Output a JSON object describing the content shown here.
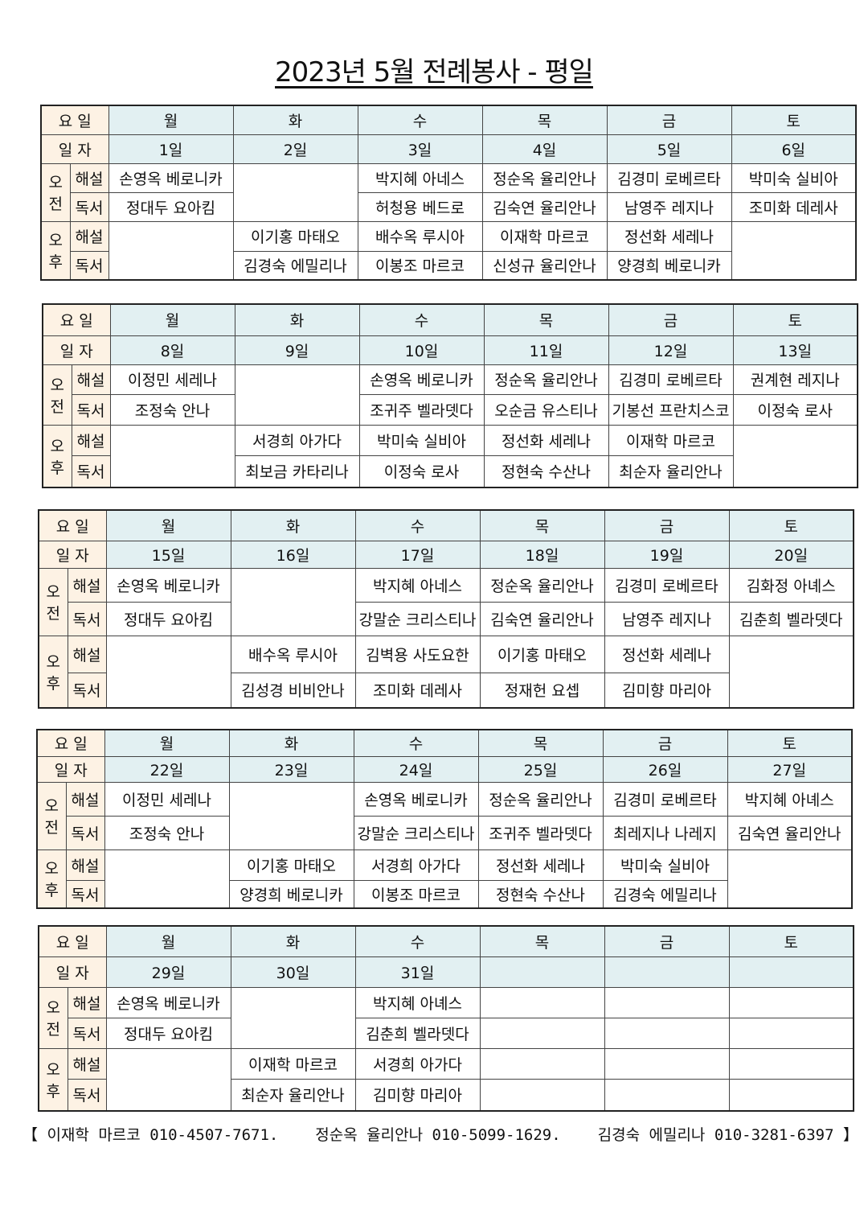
{
  "title": "2023년 5월 전례봉사 - 평일",
  "labels": {
    "weekday": "요 일",
    "date": "일 자",
    "am_1": "오",
    "am_2": "전",
    "pm_1": "오",
    "pm_2": "후",
    "commentary": "해설",
    "reading": "독서"
  },
  "colors": {
    "label_bg": "#fdf2e4",
    "header_bg": "#e2f0f2"
  },
  "weeks": [
    {
      "days": [
        "월",
        "화",
        "수",
        "목",
        "금",
        "토"
      ],
      "dates": [
        "1일",
        "2일",
        "3일",
        "4일",
        "5일",
        "6일"
      ],
      "am_commentary": [
        "손영옥 베로니카",
        "",
        "박지혜 아네스",
        "정순옥 율리안나",
        "김경미 로베르타",
        "박미숙 실비아"
      ],
      "am_reading": [
        "정대두 요아킴",
        "",
        "허청용 베드로",
        "김숙연 율리안나",
        "남영주 레지나",
        "조미화 데레사"
      ],
      "pm_commentary": [
        "",
        "이기홍 마태오",
        "배수옥 루시아",
        "이재학 마르코",
        "정선화 세레나",
        ""
      ],
      "pm_reading": [
        "",
        "김경숙 에밀리나",
        "이봉조 마르코",
        "신성규 율리안나",
        "양경희 베로니카",
        ""
      ]
    },
    {
      "days": [
        "월",
        "화",
        "수",
        "목",
        "금",
        "토"
      ],
      "dates": [
        "8일",
        "9일",
        "10일",
        "11일",
        "12일",
        "13일"
      ],
      "am_commentary": [
        "이정민 세레나",
        "",
        "손영옥 베로니카",
        "정순옥 율리안나",
        "김경미 로베르타",
        "권계현 레지나"
      ],
      "am_reading": [
        "조정숙 안나",
        "",
        "조귀주 벨라뎃다",
        "오순금 유스티나",
        "기봉선 프란치스코",
        "이정숙 로사"
      ],
      "pm_commentary": [
        "",
        "서경희 아가다",
        "박미숙 실비아",
        "정선화 세레나",
        "이재학 마르코",
        ""
      ],
      "pm_reading": [
        "",
        "최보금 카타리나",
        "이정숙 로사",
        "정현숙 수산나",
        "최순자 율리안나",
        ""
      ]
    },
    {
      "days": [
        "월",
        "화",
        "수",
        "목",
        "금",
        "토"
      ],
      "dates": [
        "15일",
        "16일",
        "17일",
        "18일",
        "19일",
        "20일"
      ],
      "am_commentary": [
        "손영옥 베로니카",
        "",
        "박지혜 아네스",
        "정순옥 율리안나",
        "김경미 로베르타",
        "김화정 아녜스"
      ],
      "am_reading": [
        "정대두 요아킴",
        "",
        "강말순 크리스티나",
        "김숙연 율리안나",
        "남영주 레지나",
        "김춘희 벨라뎃다"
      ],
      "pm_commentary": [
        "",
        "배수옥 루시아",
        "김벽용 사도요한",
        "이기홍 마태오",
        "정선화 세레나",
        ""
      ],
      "pm_reading": [
        "",
        "김성경 비비안나",
        "조미화 데레사",
        "정재헌 요셉",
        "김미향 마리아",
        ""
      ]
    },
    {
      "days": [
        "월",
        "화",
        "수",
        "목",
        "금",
        "토"
      ],
      "dates": [
        "22일",
        "23일",
        "24일",
        "25일",
        "26일",
        "27일"
      ],
      "am_commentary": [
        "이정민 세레나",
        "",
        "손영옥 베로니카",
        "정순옥 율리안나",
        "김경미 로베르타",
        "박지혜 아녜스"
      ],
      "am_reading": [
        "조정숙 안나",
        "",
        "강말순 크리스티나",
        "조귀주 벨라뎃다",
        "최레지나 나레지",
        "김숙연 율리안나"
      ],
      "pm_commentary": [
        "",
        "이기홍 마태오",
        "서경희 아가다",
        "정선화 세레나",
        "박미숙 실비아",
        ""
      ],
      "pm_reading": [
        "",
        "양경희 베로니카",
        "이봉조 마르코",
        "정현숙 수산나",
        "김경숙 에밀리나",
        ""
      ]
    },
    {
      "days": [
        "월",
        "화",
        "수",
        "목",
        "금",
        "토"
      ],
      "dates": [
        "29일",
        "30일",
        "31일",
        "",
        "",
        ""
      ],
      "am_commentary": [
        "손영옥 베로니카",
        "",
        "박지혜 아녜스",
        "",
        "",
        ""
      ],
      "am_reading": [
        "정대두 요아킴",
        "",
        "김춘희 벨라뎃다",
        "",
        "",
        ""
      ],
      "pm_commentary": [
        "",
        "이재학 마르코",
        "서경희 아가다",
        "",
        "",
        ""
      ],
      "pm_reading": [
        "",
        "최순자 율리안나",
        "김미향 마리아",
        "",
        "",
        ""
      ]
    }
  ],
  "footer": [
    "【 이재학 마르코 010-4507-7671.",
    "정순옥 율리안나 010-5099-1629.",
    "김경숙 에밀리나 010-3281-6397 】"
  ]
}
